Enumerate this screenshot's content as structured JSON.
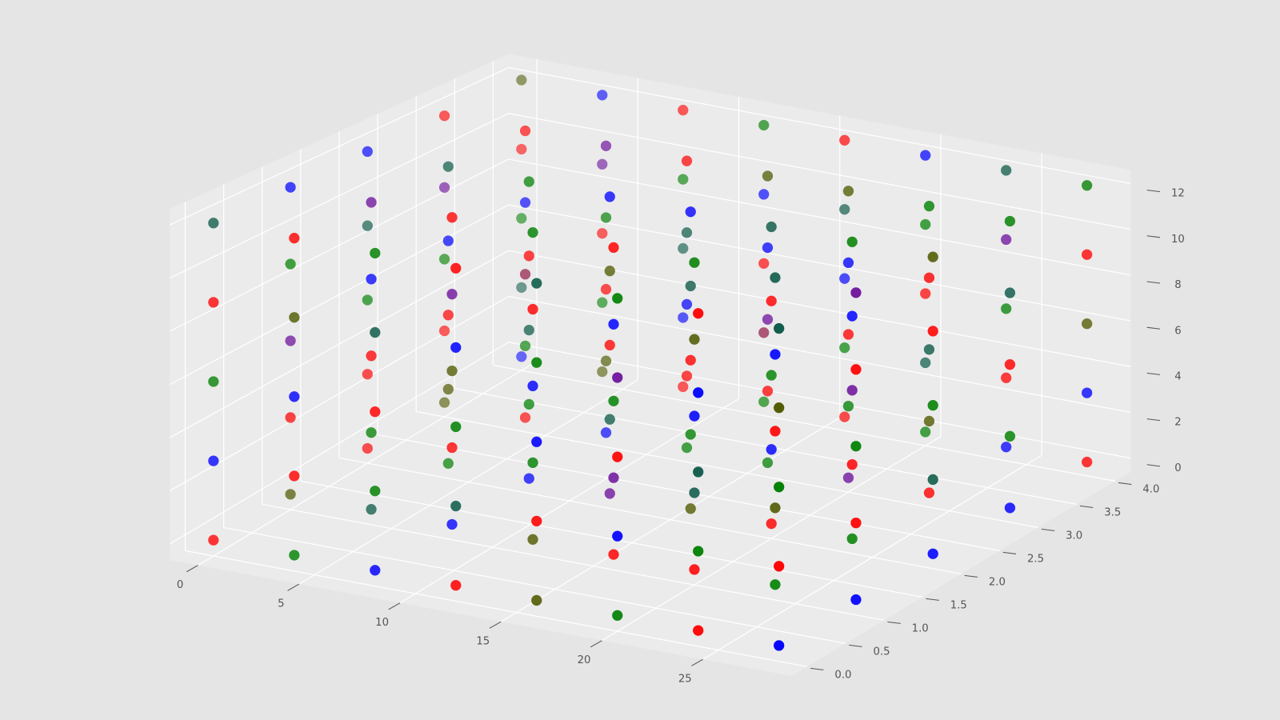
{
  "chart_data": {
    "type": "scatter3d",
    "xlim": [
      -1.4,
      29.4
    ],
    "ylim": [
      -0.2,
      4.2
    ],
    "zlim": [
      -0.6,
      12.6
    ],
    "xticks": [
      0,
      5,
      10,
      15,
      20,
      25
    ],
    "yticks": [
      {
        "value": 0,
        "label": "0.0"
      },
      0.5,
      {
        "value": 1,
        "label": "1.0"
      },
      1.5,
      {
        "value": 2,
        "label": "2.0"
      },
      2.5,
      {
        "value": 3,
        "label": "3.0"
      },
      3.5,
      {
        "value": 4,
        "label": "4.0"
      }
    ],
    "zticks": [
      0,
      2,
      4,
      6,
      8,
      10,
      12
    ],
    "grid": true,
    "series": [
      {
        "x": [
          0,
          0,
          0,
          0,
          0,
          0,
          0,
          0,
          0,
          0,
          0,
          0,
          0,
          0,
          0,
          0,
          0,
          0,
          0,
          0,
          0,
          0,
          0,
          0,
          0,
          4,
          4,
          4,
          4,
          4,
          4,
          4,
          4,
          4,
          4,
          4,
          4,
          4,
          4,
          4,
          4,
          4,
          4,
          4,
          4,
          4,
          4,
          4,
          4,
          4,
          8,
          8,
          8,
          8,
          8,
          8,
          8,
          8,
          8,
          8,
          8,
          8,
          8,
          8,
          8,
          8,
          8,
          8,
          8,
          8,
          8,
          8,
          8,
          8,
          8,
          12,
          12,
          12,
          12,
          12,
          12,
          12,
          12,
          12,
          12,
          12,
          12,
          12,
          12,
          12,
          12,
          12,
          12,
          12,
          12,
          12,
          12,
          12,
          12,
          12,
          16,
          16,
          16,
          16,
          16,
          16,
          16,
          16,
          16,
          16,
          16,
          16,
          16,
          16,
          16,
          16,
          16,
          16,
          16,
          16,
          16,
          16,
          16,
          16,
          16,
          20,
          20,
          20,
          20,
          20,
          20,
          20,
          20,
          20,
          20,
          20,
          20,
          20,
          20,
          20,
          20,
          20,
          20,
          20,
          20,
          20,
          20,
          20,
          20,
          20,
          24,
          24,
          24,
          24,
          24,
          24,
          24,
          24,
          24,
          24,
          24,
          24,
          24,
          24,
          24,
          24,
          24,
          24,
          24,
          24,
          24,
          24,
          24,
          24,
          24,
          28,
          28,
          28,
          28,
          28,
          28,
          28,
          28,
          28,
          28,
          28,
          28,
          28,
          28,
          28,
          28,
          28,
          28,
          28,
          28,
          28,
          28,
          28,
          28,
          28
        ],
        "y": [
          0,
          0,
          0,
          0,
          0,
          1,
          1,
          1,
          1,
          1,
          2,
          2,
          2,
          2,
          2,
          3,
          3,
          3,
          3,
          3,
          4,
          4,
          4,
          4,
          4,
          0,
          0,
          0,
          0,
          0,
          1,
          1,
          1,
          1,
          1,
          2,
          2,
          2,
          2,
          2,
          3,
          3,
          3,
          3,
          3,
          4,
          4,
          4,
          4,
          4,
          0,
          0,
          0,
          0,
          0,
          1,
          1,
          1,
          1,
          1,
          2,
          2,
          2,
          2,
          2,
          3,
          3,
          3,
          3,
          3,
          4,
          4,
          4,
          4,
          4,
          0,
          0,
          0,
          0,
          0,
          1,
          1,
          1,
          1,
          1,
          2,
          2,
          2,
          2,
          2,
          3,
          3,
          3,
          3,
          3,
          4,
          4,
          4,
          4,
          4,
          0,
          0,
          0,
          0,
          0,
          1,
          1,
          1,
          1,
          1,
          2,
          2,
          2,
          2,
          2,
          3,
          3,
          3,
          3,
          3,
          4,
          4,
          4,
          4,
          4,
          0,
          0,
          0,
          0,
          0,
          1,
          1,
          1,
          1,
          1,
          2,
          2,
          2,
          2,
          2,
          3,
          3,
          3,
          3,
          3,
          4,
          4,
          4,
          4,
          4,
          0,
          0,
          0,
          0,
          0,
          1,
          1,
          1,
          1,
          1,
          2,
          2,
          2,
          2,
          2,
          3,
          3,
          3,
          3,
          3,
          4,
          4,
          4,
          4,
          4,
          0,
          0,
          0,
          0,
          0,
          1,
          1,
          1,
          1,
          1,
          2,
          2,
          2,
          2,
          2,
          3,
          3,
          3,
          3,
          3,
          4,
          4,
          4,
          4,
          4
        ],
        "z": [
          0,
          3,
          6,
          9,
          12,
          0,
          3,
          6,
          9,
          12,
          0,
          3,
          6,
          9,
          12,
          0,
          3,
          6,
          9,
          12,
          0,
          3,
          6,
          9,
          12,
          0,
          3,
          6,
          9,
          12,
          0,
          3,
          6,
          9,
          12,
          0,
          3,
          6,
          9,
          12,
          0,
          3,
          6,
          9,
          12,
          0,
          3,
          6,
          9,
          12,
          0,
          3,
          6,
          9,
          12,
          0,
          3,
          6,
          9,
          12,
          0,
          3,
          6,
          9,
          12,
          0,
          3,
          6,
          9,
          12,
          0,
          3,
          6,
          9,
          12,
          0,
          3,
          6,
          9,
          12,
          0,
          3,
          6,
          9,
          12,
          0,
          3,
          6,
          9,
          12,
          0,
          3,
          6,
          9,
          12,
          0,
          3,
          6,
          9,
          12,
          0,
          3,
          6,
          9,
          12,
          0,
          3,
          6,
          9,
          12,
          0,
          3,
          6,
          9,
          12,
          0,
          3,
          6,
          9,
          12,
          0,
          3,
          6,
          9,
          12,
          0,
          3,
          6,
          9,
          12,
          0,
          3,
          6,
          9,
          12,
          0,
          3,
          6,
          9,
          12,
          0,
          3,
          6,
          9,
          12,
          0,
          3,
          6,
          9,
          12,
          0,
          3,
          6,
          9,
          12,
          0,
          3,
          6,
          9,
          12,
          0,
          3,
          6,
          9,
          12,
          0,
          3,
          6,
          9,
          12,
          0,
          3,
          6,
          9,
          12,
          0,
          3,
          6,
          9,
          12,
          0,
          3,
          6,
          9,
          12,
          0,
          3,
          6,
          9,
          12,
          0,
          3,
          6,
          9,
          12,
          0,
          3,
          6,
          9,
          12
        ],
        "colors": [
          "red",
          "blue",
          "green",
          "red",
          "#0d5a48",
          "#505a00",
          "red",
          "#6a0d9a",
          "green",
          "blue",
          "red",
          "red",
          "green",
          "#0d5a48",
          "blue",
          "#505a00",
          "red",
          "green",
          "#6a0d9a",
          "red",
          "blue",
          "#0d5a48",
          "green",
          "red",
          "#505a00",
          "green",
          "red",
          "blue",
          "#505a00",
          "red",
          "#0d5a48",
          "green",
          "red",
          "blue",
          "#6a0d9a",
          "green",
          "#505a00",
          "red",
          "blue",
          "#0d5a48",
          "red",
          "green",
          "#8a0a3a",
          "blue",
          "red",
          "#505a00",
          "green",
          "red",
          "#6a0d9a",
          "blue",
          "blue",
          "green",
          "red",
          "#0d5a48",
          "green",
          "blue",
          "red",
          "#505a00",
          "#6a0d9a",
          "red",
          "blue",
          "green",
          "#0d5a48",
          "red",
          "green",
          "blue",
          "#505a00",
          "red",
          "green",
          "#6a0d9a",
          "red",
          "blue",
          "#0d5a48",
          "green",
          "red",
          "red",
          "#0d5a48",
          "green",
          "blue",
          "red",
          "#505a00",
          "green",
          "blue",
          "red",
          "green",
          "#6a0d9a",
          "#0d5a48",
          "red",
          "#505a00",
          "blue",
          "green",
          "red",
          "blue",
          "#0d5a48",
          "red",
          "green",
          "#8a0a3a",
          "red",
          "blue",
          "green",
          "#505a00",
          "red",
          "blue",
          "green",
          "#0d5a48",
          "red",
          "#6a0d9a",
          "green",
          "blue",
          "red",
          "#505a00",
          "green",
          "red",
          "#0d5a48",
          "blue",
          "green",
          "red",
          "#6a0d9a",
          "blue",
          "#505a00",
          "red",
          "green",
          "blue",
          "#0d5a48",
          "red",
          "green",
          "blue",
          "red",
          "#6a0d9a",
          "green",
          "red",
          "#0d5a48",
          "blue",
          "#505a00",
          "green",
          "red",
          "blue",
          "green",
          "red",
          "#0d5a48",
          "#6a0d9a",
          "green",
          "red",
          "blue",
          "#505a00",
          "green",
          "#0d5a48",
          "red",
          "green",
          "blue",
          "red",
          "green",
          "#0d5a48",
          "blue",
          "red",
          "green",
          "#505a00",
          "red",
          "blue",
          "#0d5a48",
          "green",
          "red",
          "#6a0d9a",
          "blue",
          "green",
          "red",
          "#505a00",
          "#0d5a48",
          "red",
          "green",
          "blue",
          "red",
          "green",
          "#6a0d9a",
          "#0d5a48",
          "blue",
          "red",
          "green",
          "#505a00",
          "#0d5a48",
          "blue",
          "red",
          "green",
          "red",
          "#6a0d9a",
          "blue",
          "#0d5a48",
          "green",
          "red",
          "#505a00",
          "blue",
          "green",
          "red",
          "#0d5a48",
          "green",
          "red",
          "blue",
          "#505a00",
          "red",
          "green"
        ]
      }
    ]
  }
}
